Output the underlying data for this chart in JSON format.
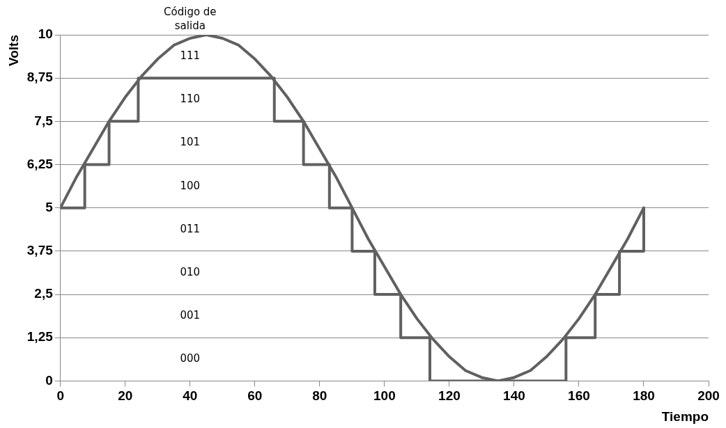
{
  "chart_data": {
    "type": "line",
    "xlabel": "Tiempo",
    "ylabel": "Volts",
    "xlim": [
      0,
      200
    ],
    "xticks": [
      0,
      20,
      40,
      60,
      80,
      100,
      120,
      140,
      160,
      180,
      200
    ],
    "ylim": [
      0,
      10
    ],
    "yticks": [
      0,
      {
        "value": 1.25,
        "label": "1,25"
      },
      {
        "value": 2.5,
        "label": "2,5"
      },
      {
        "value": 3.75,
        "label": "3,75"
      },
      5,
      {
        "value": 6.25,
        "label": "6,25"
      },
      {
        "value": 7.5,
        "label": "7,5"
      },
      {
        "value": 8.75,
        "label": "8,75"
      },
      10
    ],
    "grid": "y",
    "legend": false,
    "marker": "none",
    "line_style": "solid",
    "series": [
      {
        "color": "#606060",
        "x": [
          0,
          5,
          10,
          15,
          20,
          25,
          30,
          35,
          40,
          45,
          50,
          55,
          60,
          65,
          70,
          75,
          80,
          85,
          90,
          95,
          100,
          105,
          110,
          115,
          120,
          125,
          130,
          135,
          140,
          145,
          150,
          155,
          160,
          165,
          170,
          175,
          180
        ],
        "values": [
          5,
          5.9,
          6.7,
          7.5,
          8.2,
          8.8,
          9.3,
          9.7,
          9.9,
          10,
          9.9,
          9.7,
          9.3,
          8.8,
          8.2,
          7.5,
          6.7,
          5.9,
          5,
          4.1,
          3.3,
          2.5,
          1.8,
          1.2,
          0.7,
          0.3,
          0.1,
          0,
          0.1,
          0.3,
          0.7,
          1.2,
          1.8,
          2.5,
          3.3,
          4.1,
          5
        ]
      },
      {
        "color": "#606060",
        "x": [
          0,
          7.5,
          7.5,
          15,
          15,
          24,
          24,
          66,
          66,
          75,
          75,
          83,
          83,
          90,
          90,
          97,
          97,
          105,
          105,
          114,
          114,
          156,
          156,
          165,
          165,
          172.5,
          172.5,
          180,
          180
        ],
        "values": [
          5,
          5,
          6.25,
          6.25,
          7.5,
          7.5,
          8.75,
          8.75,
          7.5,
          7.5,
          6.25,
          6.25,
          5,
          5,
          3.75,
          3.75,
          2.5,
          2.5,
          1.25,
          1.25,
          0,
          0,
          1.25,
          1.25,
          2.5,
          2.5,
          3.75,
          3.75,
          5
        ]
      }
    ],
    "annotations": [
      "Código de salida",
      "111",
      "110",
      "101",
      "100",
      "011",
      "010",
      "001",
      "000"
    ]
  }
}
